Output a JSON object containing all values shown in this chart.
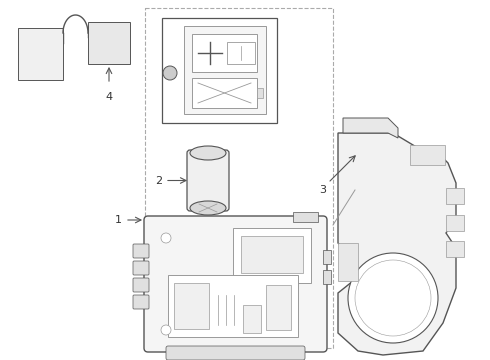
{
  "background_color": "#ffffff",
  "line_color": "#999999",
  "dark_line_color": "#555555",
  "label_color": "#333333",
  "fig_width": 4.9,
  "fig_height": 3.6,
  "dpi": 100
}
